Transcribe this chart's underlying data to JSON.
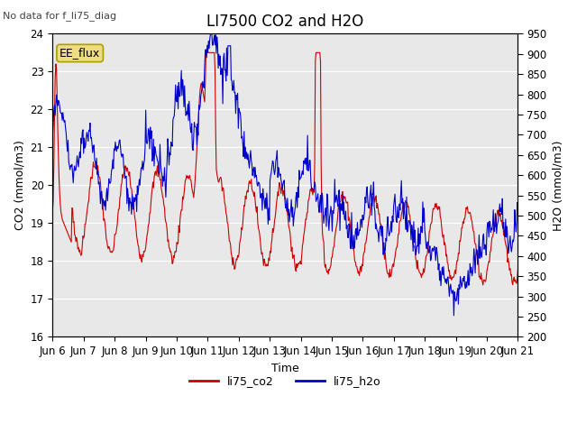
{
  "title": "LI7500 CO2 and H2O",
  "top_left_text": "No data for f_li75_diag",
  "box_label": "EE_flux",
  "xlabel": "Time",
  "ylabel_left": "CO2 (mmol/m3)",
  "ylabel_right": "H2O (mmol/m3)",
  "ylim_left": [
    16.0,
    24.0
  ],
  "ylim_right": [
    200,
    950
  ],
  "yticks_left": [
    16.0,
    17.0,
    18.0,
    19.0,
    20.0,
    21.0,
    22.0,
    23.0,
    24.0
  ],
  "yticks_right": [
    200,
    250,
    300,
    350,
    400,
    450,
    500,
    550,
    600,
    650,
    700,
    750,
    800,
    850,
    900,
    950
  ],
  "xtick_labels": [
    "Jun 6",
    "Jun 7",
    "Jun 8",
    "Jun 9",
    "Jun 10",
    "Jun 11",
    "Jun 12",
    "Jun 13",
    "Jun 14",
    "Jun 15",
    "Jun 16",
    "Jun 17",
    "Jun 18",
    "Jun 19",
    "Jun 20",
    "Jun 21"
  ],
  "bg_color": "#e8e8e8",
  "line_co2_color": "#cc0000",
  "line_h2o_color": "#0000cc",
  "legend_co2": "li75_co2",
  "legend_h2o": "li75_h2o",
  "title_fontsize": 12,
  "label_fontsize": 9,
  "tick_fontsize": 8.5
}
